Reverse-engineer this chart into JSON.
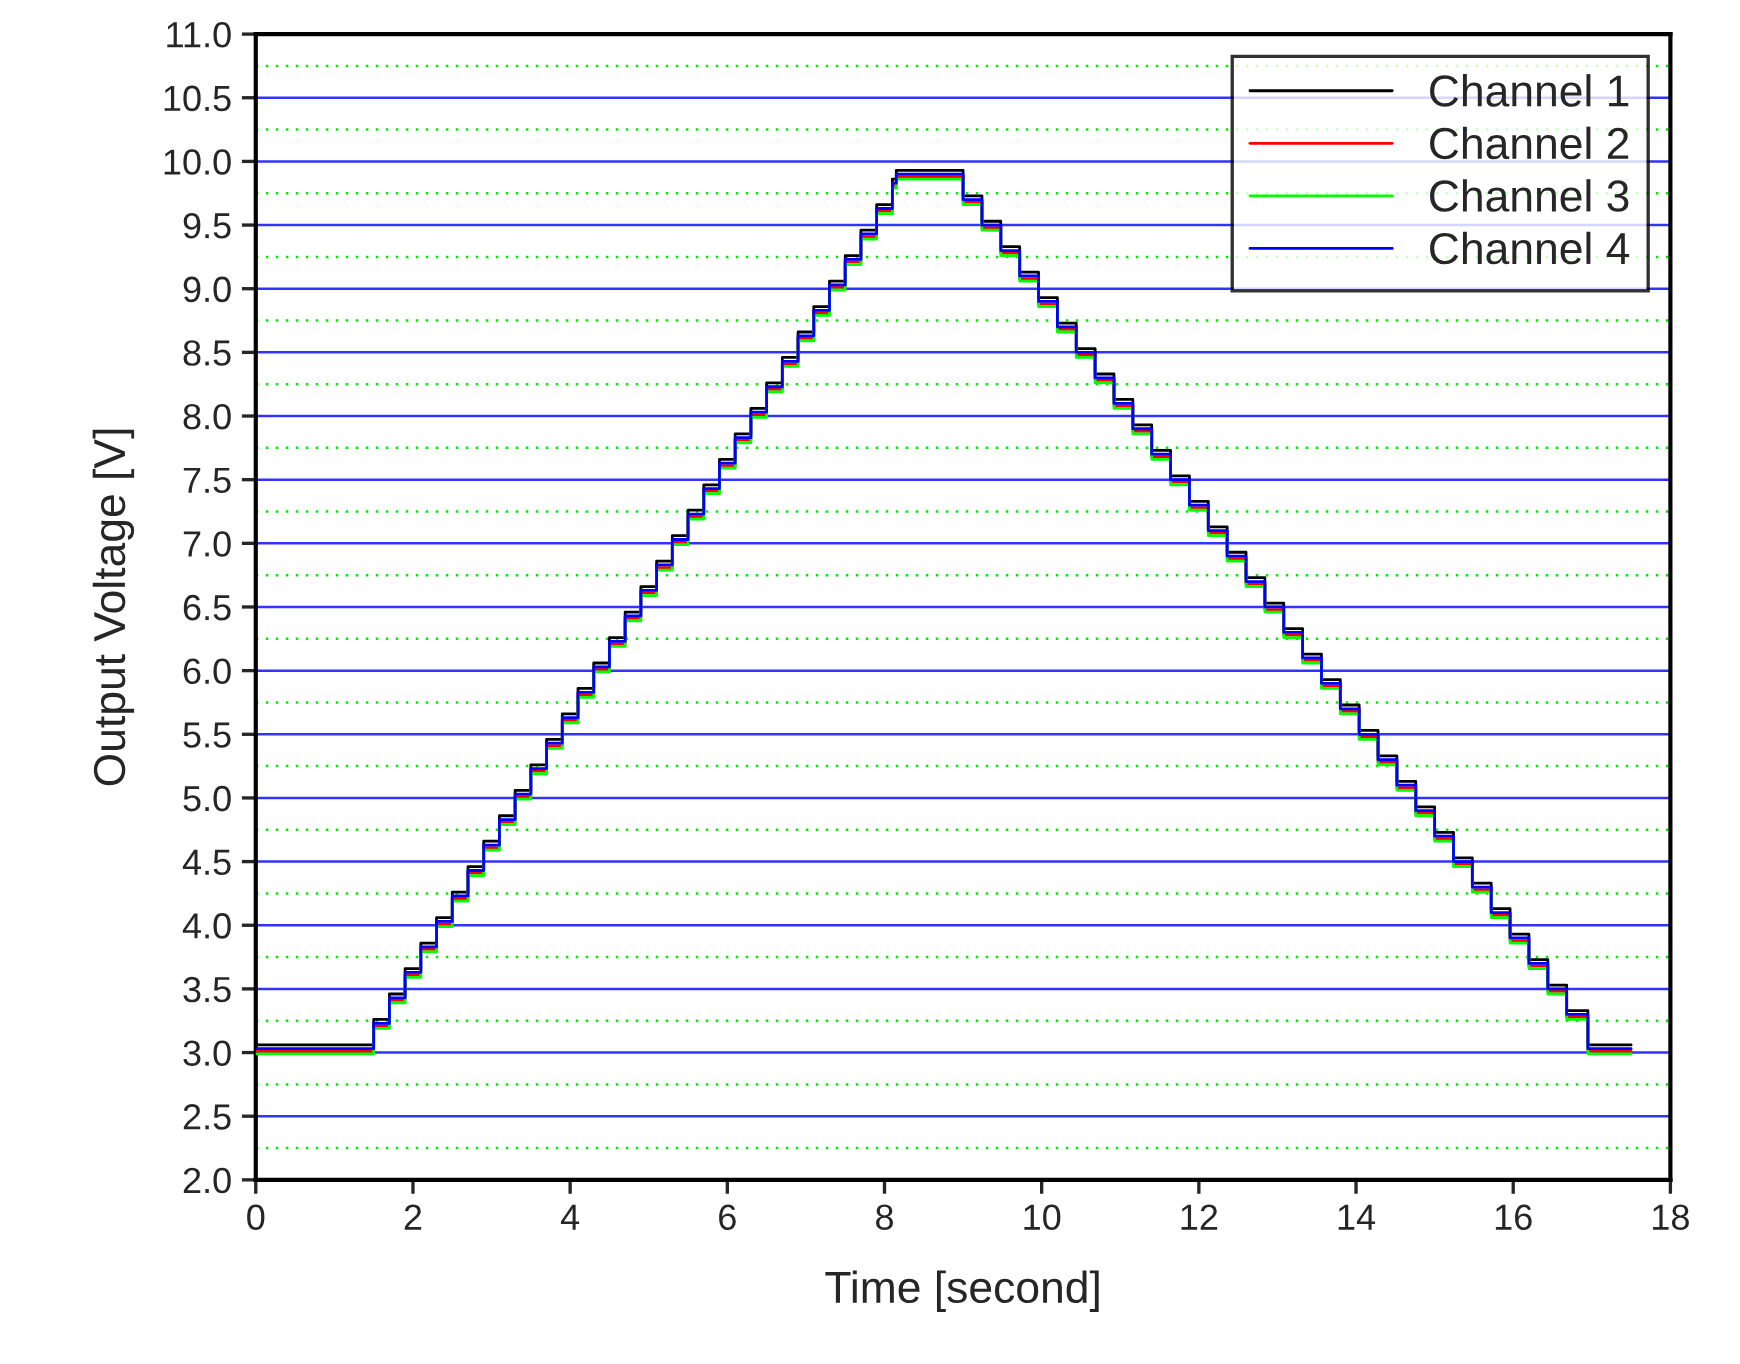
{
  "chart_data": {
    "type": "step",
    "xlabel": "Time [second]",
    "ylabel": "Output Voltage [V]",
    "x": [
      0,
      1.5,
      1.7,
      1.9,
      2.1,
      2.3,
      2.5,
      2.7,
      2.9,
      3.1,
      3.3,
      3.5,
      3.7,
      3.9,
      4.1,
      4.3,
      4.5,
      4.7,
      4.9,
      5.1,
      5.3,
      5.5,
      5.7,
      5.9,
      6.1,
      6.3,
      6.5,
      6.7,
      6.9,
      7.1,
      7.3,
      7.5,
      7.7,
      7.9,
      8.1,
      8.15,
      9.0,
      9.24,
      9.48,
      9.72,
      9.96,
      10.2,
      10.44,
      10.68,
      10.92,
      11.16,
      11.4,
      11.64,
      11.88,
      12.12,
      12.36,
      12.6,
      12.84,
      13.08,
      13.32,
      13.56,
      13.8,
      14.04,
      14.28,
      14.52,
      14.76,
      15.0,
      15.24,
      15.48,
      15.72,
      15.96,
      16.2,
      16.44,
      16.68,
      16.95,
      17.5
    ],
    "series": [
      {
        "name": "Channel 1",
        "color": "#000000",
        "values": [
          3.06,
          3.26,
          3.46,
          3.66,
          3.86,
          4.06,
          4.26,
          4.46,
          4.66,
          4.86,
          5.06,
          5.26,
          5.46,
          5.66,
          5.86,
          6.06,
          6.26,
          6.46,
          6.66,
          6.86,
          7.06,
          7.26,
          7.46,
          7.66,
          7.86,
          8.06,
          8.26,
          8.46,
          8.66,
          8.86,
          9.06,
          9.26,
          9.46,
          9.66,
          9.86,
          9.93,
          9.73,
          9.53,
          9.33,
          9.13,
          8.93,
          8.73,
          8.53,
          8.33,
          8.13,
          7.93,
          7.73,
          7.53,
          7.33,
          7.13,
          6.93,
          6.73,
          6.53,
          6.33,
          6.13,
          5.93,
          5.73,
          5.53,
          5.33,
          5.13,
          4.93,
          4.73,
          4.53,
          4.33,
          4.13,
          3.93,
          3.73,
          3.53,
          3.33,
          3.06,
          3.06
        ]
      },
      {
        "name": "Channel 2",
        "color": "#ff0000",
        "values": [
          3.01,
          3.21,
          3.41,
          3.61,
          3.81,
          4.01,
          4.21,
          4.41,
          4.61,
          4.81,
          5.01,
          5.21,
          5.41,
          5.61,
          5.81,
          6.01,
          6.21,
          6.41,
          6.61,
          6.81,
          7.01,
          7.21,
          7.41,
          7.61,
          7.81,
          8.01,
          8.21,
          8.41,
          8.61,
          8.81,
          9.01,
          9.21,
          9.41,
          9.61,
          9.81,
          9.88,
          9.68,
          9.48,
          9.28,
          9.08,
          8.88,
          8.68,
          8.48,
          8.28,
          8.08,
          7.88,
          7.68,
          7.48,
          7.28,
          7.08,
          6.88,
          6.68,
          6.48,
          6.28,
          6.08,
          5.88,
          5.68,
          5.48,
          5.28,
          5.08,
          4.88,
          4.68,
          4.48,
          4.28,
          4.08,
          3.88,
          3.68,
          3.48,
          3.28,
          3.01,
          3.01
        ]
      },
      {
        "name": "Channel 3",
        "color": "#00ff00",
        "values": [
          2.99,
          3.19,
          3.39,
          3.59,
          3.79,
          3.99,
          4.19,
          4.39,
          4.59,
          4.79,
          4.99,
          5.19,
          5.39,
          5.59,
          5.79,
          5.99,
          6.19,
          6.39,
          6.59,
          6.79,
          6.99,
          7.19,
          7.39,
          7.59,
          7.79,
          7.99,
          8.19,
          8.39,
          8.59,
          8.79,
          8.99,
          9.19,
          9.39,
          9.59,
          9.79,
          9.86,
          9.66,
          9.46,
          9.26,
          9.06,
          8.86,
          8.66,
          8.46,
          8.26,
          8.06,
          7.86,
          7.66,
          7.46,
          7.26,
          7.06,
          6.86,
          6.66,
          6.46,
          6.26,
          6.06,
          5.86,
          5.66,
          5.46,
          5.26,
          5.06,
          4.86,
          4.66,
          4.46,
          4.26,
          4.06,
          3.86,
          3.66,
          3.46,
          3.26,
          2.99,
          2.99
        ]
      },
      {
        "name": "Channel 4",
        "color": "#0000ff",
        "values": [
          3.03,
          3.23,
          3.43,
          3.63,
          3.83,
          4.03,
          4.23,
          4.43,
          4.63,
          4.83,
          5.03,
          5.23,
          5.43,
          5.63,
          5.83,
          6.03,
          6.23,
          6.43,
          6.63,
          6.83,
          7.03,
          7.23,
          7.43,
          7.63,
          7.83,
          8.03,
          8.23,
          8.43,
          8.63,
          8.83,
          9.03,
          9.23,
          9.43,
          9.63,
          9.83,
          9.9,
          9.7,
          9.5,
          9.3,
          9.1,
          8.9,
          8.7,
          8.5,
          8.3,
          8.1,
          7.9,
          7.7,
          7.5,
          7.3,
          7.1,
          6.9,
          6.7,
          6.5,
          6.3,
          6.1,
          5.9,
          5.7,
          5.5,
          5.3,
          5.1,
          4.9,
          4.7,
          4.5,
          4.3,
          4.1,
          3.9,
          3.7,
          3.5,
          3.3,
          3.03,
          3.03
        ]
      }
    ],
    "xlim": [
      0,
      18
    ],
    "xticks": [
      0,
      2,
      4,
      6,
      8,
      10,
      12,
      14,
      16,
      18
    ],
    "ylim": [
      2.0,
      11.0
    ],
    "yticks": [
      {
        "value": 2.0,
        "label": "2.0"
      },
      {
        "value": 2.5,
        "label": "2.5"
      },
      {
        "value": 3.0,
        "label": "3.0"
      },
      {
        "value": 3.5,
        "label": "3.5"
      },
      {
        "value": 4.0,
        "label": "4.0"
      },
      {
        "value": 4.5,
        "label": "4.5"
      },
      {
        "value": 5.0,
        "label": "5.0"
      },
      {
        "value": 5.5,
        "label": "5.5"
      },
      {
        "value": 6.0,
        "label": "6.0"
      },
      {
        "value": 6.5,
        "label": "6.5"
      },
      {
        "value": 7.0,
        "label": "7.0"
      },
      {
        "value": 7.5,
        "label": "7.5"
      },
      {
        "value": 8.0,
        "label": "8.0"
      },
      {
        "value": 8.5,
        "label": "8.5"
      },
      {
        "value": 9.0,
        "label": "9.0"
      },
      {
        "value": 9.5,
        "label": "9.5"
      },
      {
        "value": 10.0,
        "label": "10.0"
      },
      {
        "value": 10.5,
        "label": "10.5"
      },
      {
        "value": 11.0,
        "label": "11.0"
      }
    ],
    "ref_lines": [
      {
        "axis": "y",
        "value": 2.25,
        "color": "#00ee00",
        "line_style": "dotted"
      },
      {
        "axis": "y",
        "value": 2.75,
        "color": "#00ee00",
        "line_style": "dotted"
      },
      {
        "axis": "y",
        "value": 3.25,
        "color": "#00ee00",
        "line_style": "dotted"
      },
      {
        "axis": "y",
        "value": 3.75,
        "color": "#00ee00",
        "line_style": "dotted"
      },
      {
        "axis": "y",
        "value": 4.25,
        "color": "#00ee00",
        "line_style": "dotted"
      },
      {
        "axis": "y",
        "value": 4.75,
        "color": "#00ee00",
        "line_style": "dotted"
      },
      {
        "axis": "y",
        "value": 5.25,
        "color": "#00ee00",
        "line_style": "dotted"
      },
      {
        "axis": "y",
        "value": 5.75,
        "color": "#00ee00",
        "line_style": "dotted"
      },
      {
        "axis": "y",
        "value": 6.25,
        "color": "#00ee00",
        "line_style": "dotted"
      },
      {
        "axis": "y",
        "value": 6.75,
        "color": "#00ee00",
        "line_style": "dotted"
      },
      {
        "axis": "y",
        "value": 7.25,
        "color": "#00ee00",
        "line_style": "dotted"
      },
      {
        "axis": "y",
        "value": 7.75,
        "color": "#00ee00",
        "line_style": "dotted"
      },
      {
        "axis": "y",
        "value": 8.25,
        "color": "#00ee00",
        "line_style": "dotted"
      },
      {
        "axis": "y",
        "value": 8.75,
        "color": "#00ee00",
        "line_style": "dotted"
      },
      {
        "axis": "y",
        "value": 9.25,
        "color": "#00ee00",
        "line_style": "dotted"
      },
      {
        "axis": "y",
        "value": 9.75,
        "color": "#00ee00",
        "line_style": "dotted"
      },
      {
        "axis": "y",
        "value": 10.25,
        "color": "#00ee00",
        "line_style": "dotted"
      },
      {
        "axis": "y",
        "value": 10.75,
        "color": "#00ee00",
        "line_style": "dotted"
      }
    ],
    "grid": "y",
    "legend": "top right",
    "line_style": "solid"
  }
}
